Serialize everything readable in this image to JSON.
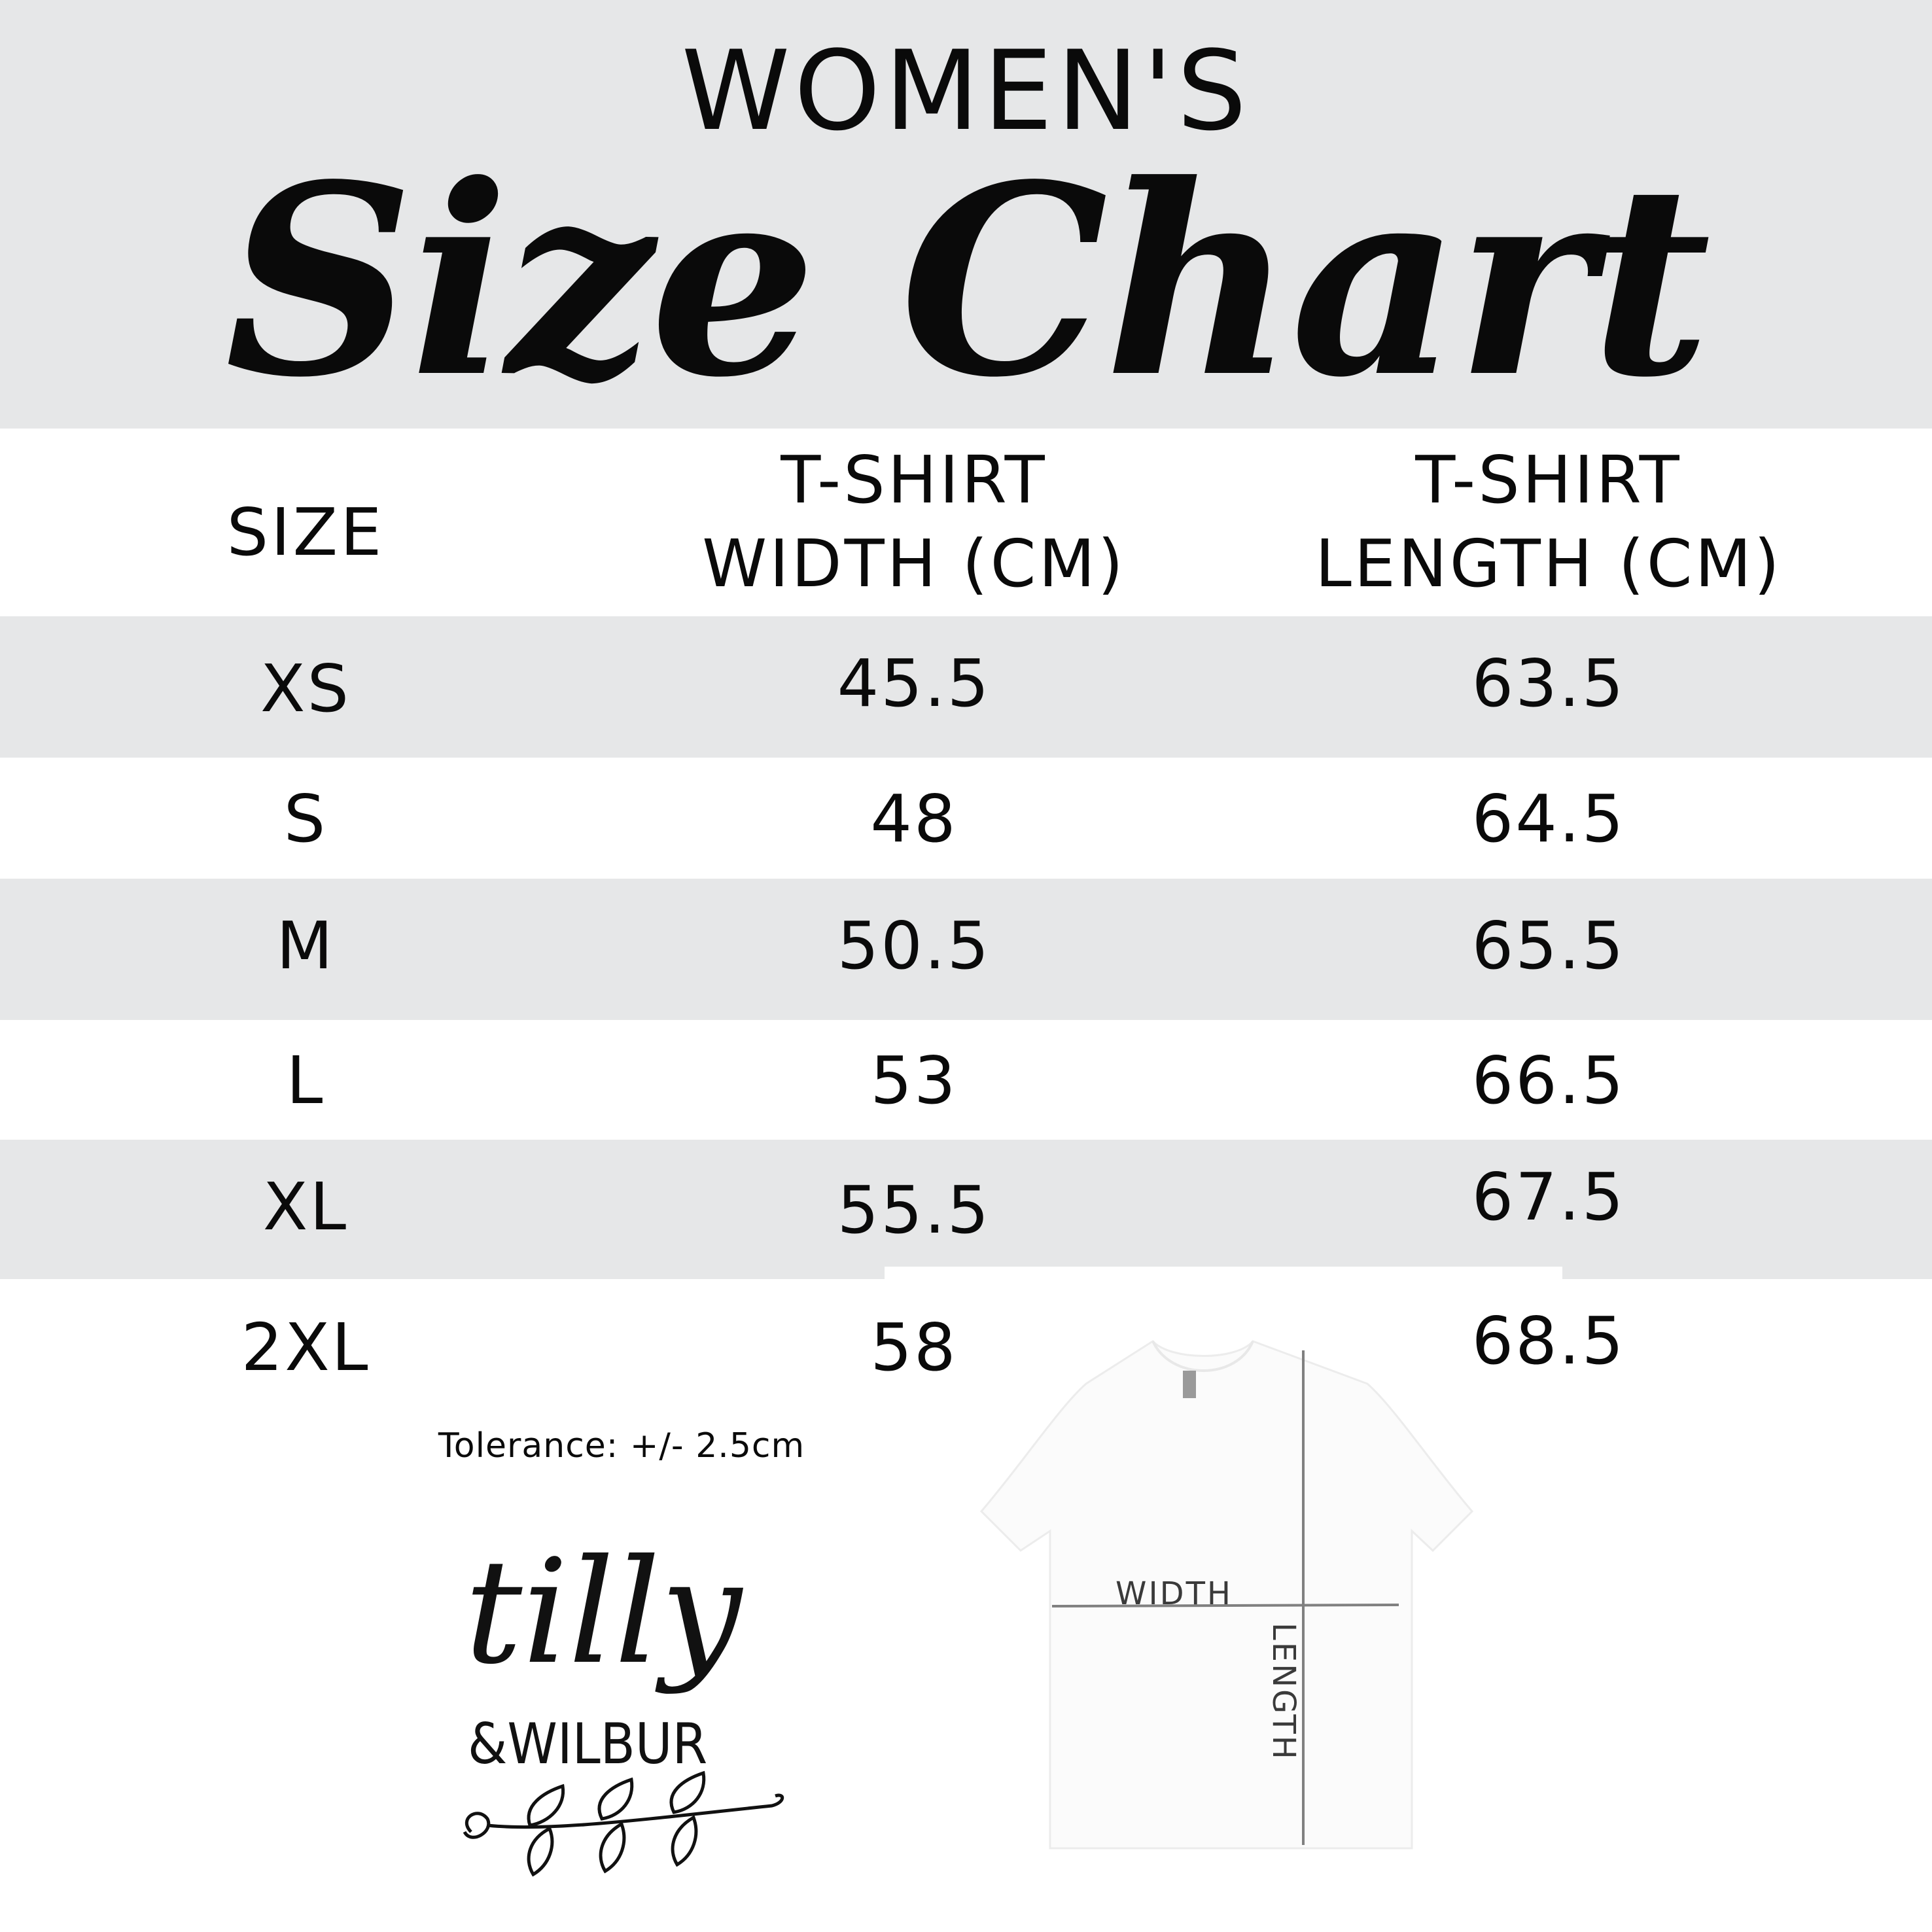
{
  "header": {
    "subtitle": "WOMEN'S",
    "title": "Size Chart"
  },
  "table": {
    "columns": [
      "SIZE",
      "T-SHIRT\nWIDTH (CM)",
      "T-SHIRT\nLENGTH (CM)"
    ],
    "column_lines": {
      "width": [
        "T-SHIRT",
        "WIDTH (CM)"
      ],
      "length": [
        "T-SHIRT",
        "LENGTH (CM)"
      ]
    },
    "rows": [
      {
        "size": "XS",
        "width": "45.5",
        "length": "63.5"
      },
      {
        "size": "S",
        "width": "48",
        "length": "64.5"
      },
      {
        "size": "M",
        "width": "50.5",
        "length": "65.5"
      },
      {
        "size": "L",
        "width": "53",
        "length": "66.5"
      },
      {
        "size": "XL",
        "width": "55.5",
        "length": "67.5"
      },
      {
        "size": "2XL",
        "width": "58",
        "length": "68.5"
      }
    ]
  },
  "tolerance": "Tolerance: +/- 2.5cm",
  "logo": {
    "text": "tilly & WILBUR"
  },
  "diagram": {
    "width_label": "WIDTH",
    "length_label": "LENGTH"
  },
  "colors": {
    "band": "#e6e7e8",
    "text": "#0a0a0a",
    "measure_line": "#808080"
  }
}
